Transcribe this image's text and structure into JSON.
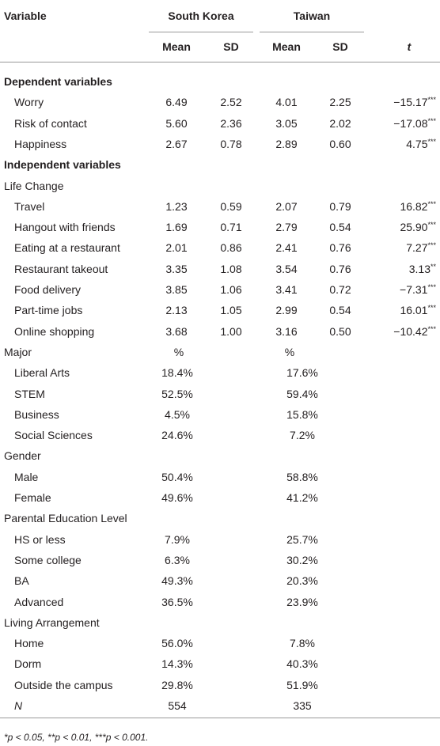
{
  "header": {
    "variable": "Variable",
    "groups": [
      "South Korea",
      "Taiwan"
    ],
    "columns": [
      "Mean",
      "SD",
      "Mean",
      "SD",
      "t"
    ]
  },
  "dependent": {
    "title": "Dependent variables",
    "rows": [
      {
        "label": "Worry",
        "values": [
          "6.49",
          "2.52",
          "4.01",
          "2.25"
        ],
        "t": "−15.17",
        "sig": "***"
      },
      {
        "label": "Risk of contact",
        "values": [
          "5.60",
          "2.36",
          "3.05",
          "2.02"
        ],
        "t": "−17.08",
        "sig": "***"
      },
      {
        "label": "Happiness",
        "values": [
          "2.67",
          "0.78",
          "2.89",
          "0.60"
        ],
        "t": "4.75",
        "sig": "***"
      }
    ]
  },
  "independent": {
    "title": "Independent variables",
    "blocks": [
      {
        "title": "Life Change",
        "rows": [
          {
            "label": "Travel",
            "values": [
              "1.23",
              "0.59",
              "2.07",
              "0.79"
            ],
            "t": "16.82",
            "sig": "***"
          },
          {
            "label": "Hangout with friends",
            "values": [
              "1.69",
              "0.71",
              "2.79",
              "0.54"
            ],
            "t": "25.90",
            "sig": "***"
          },
          {
            "label": "Eating at a restaurant",
            "values": [
              "2.01",
              "0.86",
              "2.41",
              "0.76"
            ],
            "t": "7.27",
            "sig": "***"
          },
          {
            "label": "Restaurant takeout",
            "values": [
              "3.35",
              "1.08",
              "3.54",
              "0.76"
            ],
            "t": "3.13",
            "sig": "**"
          },
          {
            "label": "Food delivery",
            "values": [
              "3.85",
              "1.06",
              "3.41",
              "0.72"
            ],
            "t": "−7.31",
            "sig": "***"
          },
          {
            "label": "Part-time jobs",
            "values": [
              "2.13",
              "1.05",
              "2.99",
              "0.54"
            ],
            "t": "16.01",
            "sig": "***"
          },
          {
            "label": "Online shopping",
            "values": [
              "3.68",
              "1.00",
              "3.16",
              "0.50"
            ],
            "t": "−10.42",
            "sig": "***"
          }
        ]
      },
      {
        "title": "Major",
        "columns": [
          "%",
          "%"
        ],
        "rows": [
          {
            "label": "Liberal Arts",
            "values": [
              "18.4%",
              "17.6%"
            ]
          },
          {
            "label": "STEM",
            "values": [
              "52.5%",
              "59.4%"
            ]
          },
          {
            "label": "Business",
            "values": [
              "4.5%",
              "15.8%"
            ]
          },
          {
            "label": "Social Sciences",
            "values": [
              "24.6%",
              "7.2%"
            ]
          }
        ]
      },
      {
        "title": "Gender",
        "rows": [
          {
            "label": "Male",
            "values": [
              "50.4%",
              "58.8%"
            ]
          },
          {
            "label": "Female",
            "values": [
              "49.6%",
              "41.2%"
            ]
          }
        ]
      },
      {
        "title": "Parental Education Level",
        "rows": [
          {
            "label": "HS or less",
            "values": [
              "7.9%",
              "25.7%"
            ]
          },
          {
            "label": "Some college",
            "values": [
              "6.3%",
              "30.2%"
            ]
          },
          {
            "label": "BA",
            "values": [
              "49.3%",
              "20.3%"
            ]
          },
          {
            "label": "Advanced",
            "values": [
              "36.5%",
              "23.9%"
            ]
          }
        ]
      },
      {
        "title": "Living Arrangement",
        "rows": [
          {
            "label": "Home",
            "values": [
              "56.0%",
              "7.8%"
            ]
          },
          {
            "label": "Dorm",
            "values": [
              "14.3%",
              "40.3%"
            ]
          },
          {
            "label": "Outside the campus",
            "values": [
              "29.8%",
              "51.9%"
            ]
          }
        ]
      }
    ],
    "n": {
      "label": "N",
      "values": [
        "554",
        "335"
      ]
    }
  },
  "footnote": "*p < 0.05, **p < 0.01, ***p < 0.001."
}
